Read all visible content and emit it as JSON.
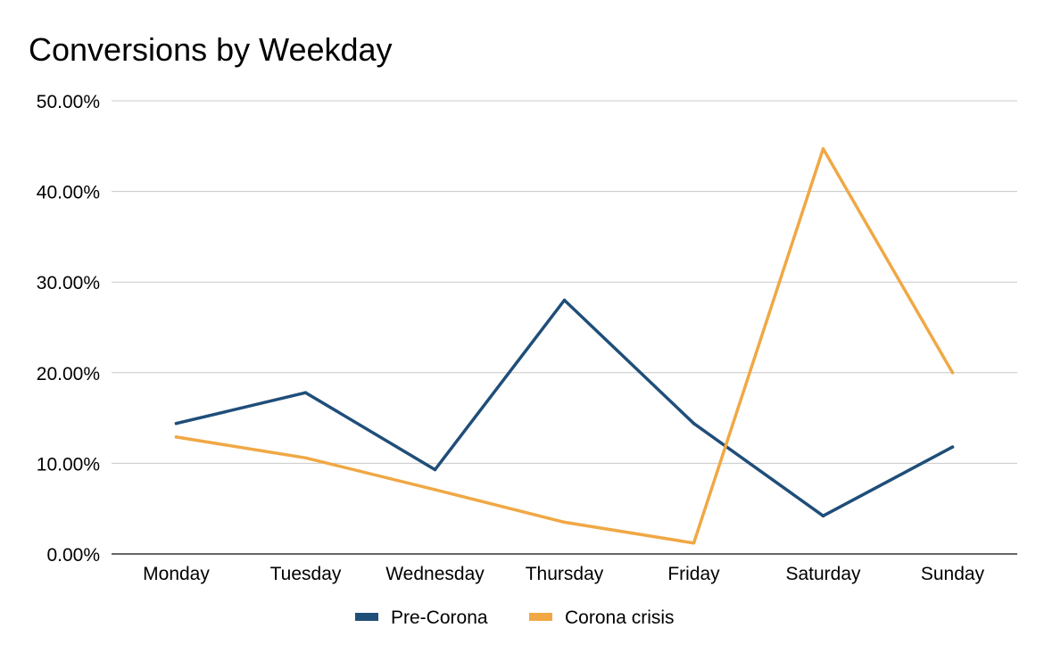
{
  "chart_data": {
    "type": "line",
    "title": "Conversions by Weekday",
    "xlabel": "",
    "ylabel": "",
    "categories": [
      "Monday",
      "Tuesday",
      "Wednesday",
      "Thursday",
      "Friday",
      "Saturday",
      "Sunday"
    ],
    "y_ticks": [
      "0.00%",
      "10.00%",
      "20.00%",
      "30.00%",
      "40.00%",
      "50.00%"
    ],
    "ylim": [
      0,
      50
    ],
    "grid": true,
    "legend_position": "bottom",
    "series": [
      {
        "name": "Pre-Corona",
        "color": "#1f4e79",
        "values": [
          14.4,
          17.8,
          9.3,
          28.0,
          14.4,
          4.2,
          11.8
        ]
      },
      {
        "name": "Corona crisis",
        "color": "#f0a845",
        "values": [
          12.9,
          10.6,
          7.1,
          3.5,
          1.2,
          44.7,
          20.0
        ]
      }
    ]
  }
}
